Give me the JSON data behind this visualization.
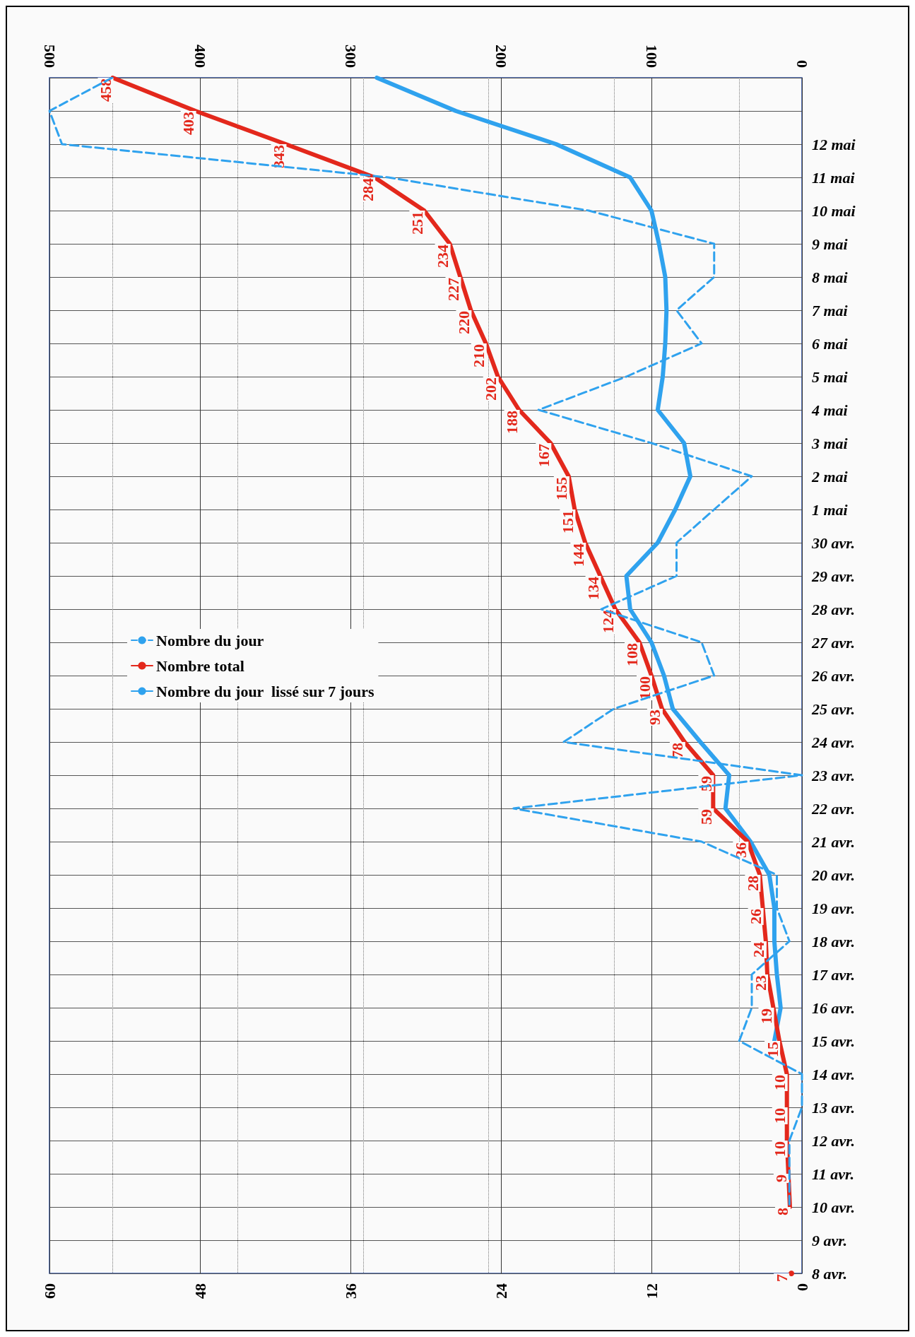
{
  "chart_data": {
    "type": "line",
    "orientation": "horizontal",
    "categories": [
      null,
      null,
      "12 mai",
      "11 mai",
      "10 mai",
      "9 mai",
      "8 mai",
      "7 mai",
      "6 mai",
      "5 mai",
      "4 mai",
      "3 mai",
      "2 mai",
      "1 mai",
      "30 avr.",
      "29 avr.",
      "28 avr.",
      "27 avr.",
      "26 avr.",
      "25 avr.",
      "24 avr.",
      "23 avr.",
      "22 avr.",
      "21 avr.",
      "20 avr.",
      "19 avr.",
      "18 avr.",
      "17 avr.",
      "16 avr.",
      "15 avr.",
      "14 avr.",
      "13 avr.",
      "12 avr.",
      "11 avr.",
      "10 avr.",
      "9 avr.",
      "8 avr."
    ],
    "series": [
      {
        "name": "Nombre du jour",
        "color": "#2fa2ee",
        "line_style": "dashed",
        "values": [
          55,
          60,
          59,
          33,
          17,
          7,
          7,
          10,
          8,
          14,
          21,
          12,
          4,
          7,
          10,
          10,
          16,
          8,
          7,
          15,
          19,
          0,
          23,
          8,
          2,
          2,
          1,
          4,
          4,
          5,
          0,
          0,
          1,
          1,
          1,
          null,
          null
        ]
      },
      {
        "name": "Nombre total",
        "color": "#e3281c",
        "axis": "x2",
        "line_style": "solid",
        "values": [
          458,
          403,
          343,
          284,
          251,
          234,
          227,
          220,
          210,
          202,
          188,
          167,
          155,
          151,
          144,
          134,
          124,
          108,
          100,
          93,
          78,
          59,
          59,
          36,
          28,
          26,
          24,
          23,
          19,
          15,
          10,
          10,
          10,
          9,
          8,
          null,
          7
        ],
        "value_labels": [
          "458",
          "403",
          "343",
          "284",
          "251",
          "234",
          "227",
          "220",
          "210",
          "202",
          "188",
          "167",
          "155",
          "151",
          "144",
          "134",
          "124",
          "108",
          "100",
          "93",
          "78",
          "59",
          "59",
          "36",
          "28",
          "26",
          "24",
          "23",
          "19",
          "15",
          "10",
          "10",
          "10",
          "9",
          "8",
          null,
          "7"
        ]
      },
      {
        "name": "Nombre du jour  lissé sur 7 jours",
        "color": "#2fa2ee",
        "line_style": "solid",
        "values": [
          33.9,
          27.6,
          19.6,
          13.7,
          12,
          11.4,
          10.9,
          10.8,
          10.9,
          11.1,
          11.5,
          9.4,
          8.9,
          10.1,
          11.5,
          14,
          13.7,
          12,
          11,
          10.3,
          8.1,
          5.8,
          6.1,
          4.1,
          2.6,
          2.2,
          2.2,
          2,
          1.7,
          2.2,
          null,
          null,
          null,
          null,
          null,
          null,
          null
        ]
      }
    ],
    "xlim": [
      60,
      0
    ],
    "xticks": [
      0,
      12,
      24,
      36,
      48,
      60
    ],
    "x2lim": [
      500,
      0
    ],
    "x2ticks": [
      0,
      100,
      200,
      300,
      400,
      500
    ],
    "grid": true,
    "legend": "top left",
    "marker": "none"
  }
}
